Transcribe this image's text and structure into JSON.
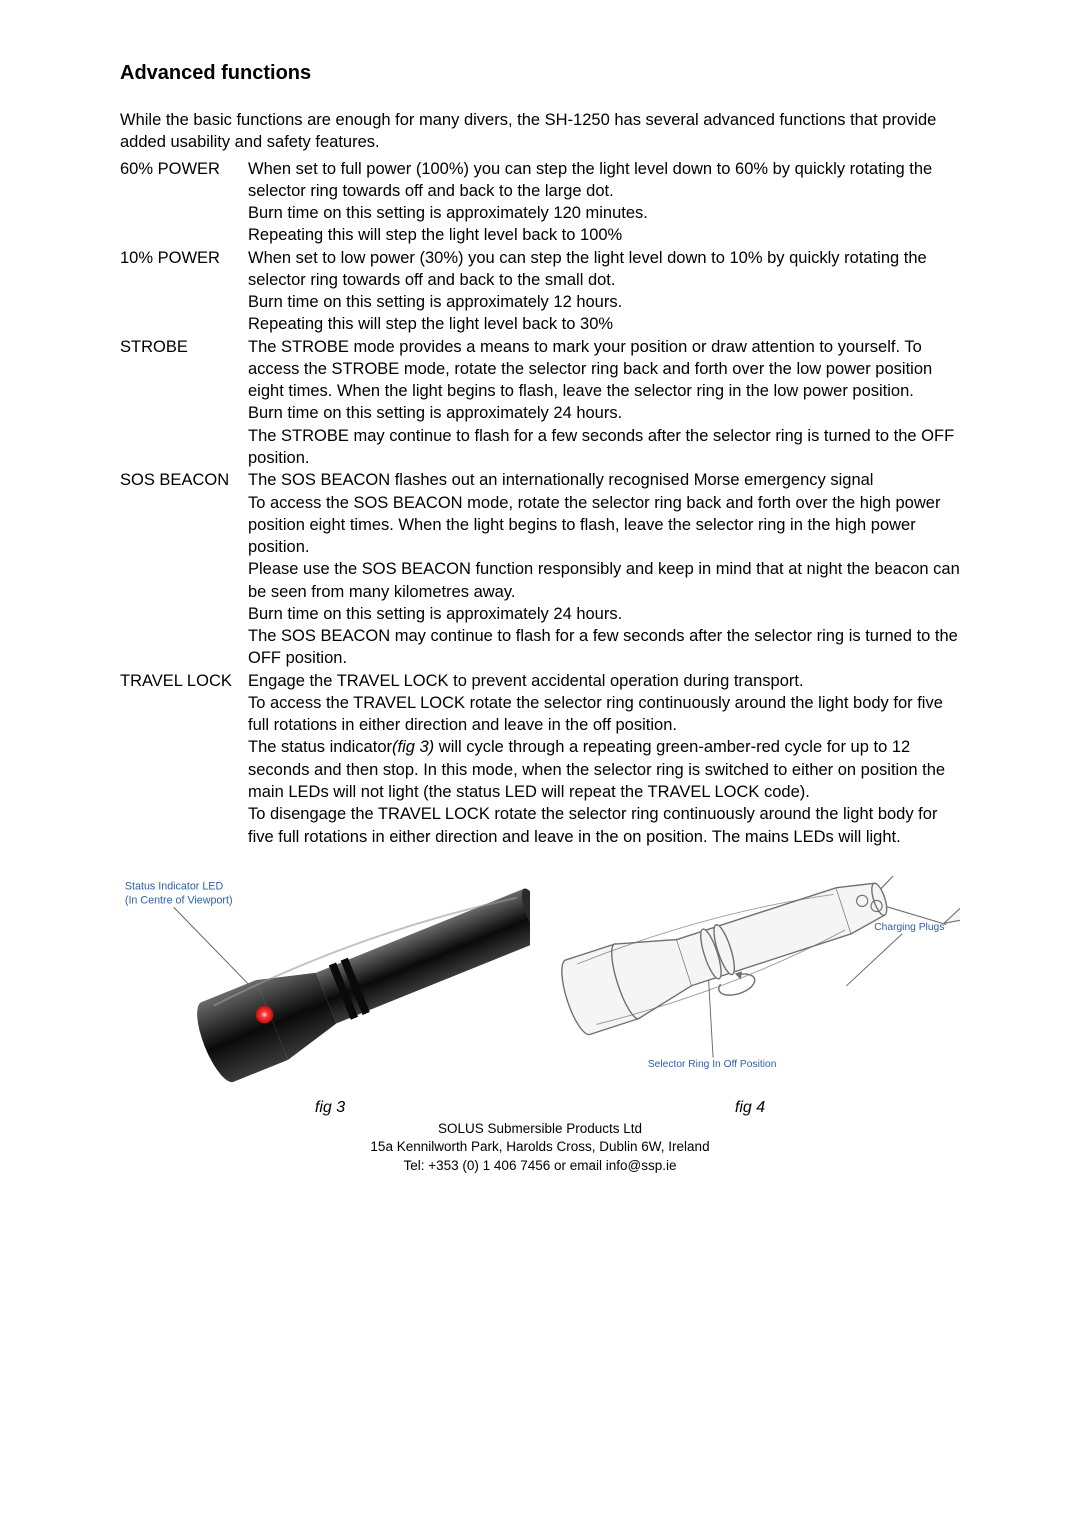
{
  "heading": "Advanced functions",
  "intro": "While the basic functions are enough for many divers, the SH-1250 has several advanced functions that provide added usability and safety features.",
  "functions": [
    {
      "label": "60% POWER",
      "paras": [
        "When set to full power (100%) you can step the light level down to 60% by quickly rotating the selector ring towards off and back to the large dot.",
        "Burn time on this setting is approximately 120 minutes.",
        "Repeating this will step the light level back to 100%"
      ]
    },
    {
      "label": "10% POWER",
      "paras": [
        "When set to low power (30%) you can step the light level down to 10% by quickly rotating the selector ring towards off and back to the small dot.",
        "Burn time on this setting is approximately 12 hours.",
        "Repeating this will step the light level back to 30%"
      ]
    },
    {
      "label": "STROBE",
      "paras": [
        "The STROBE mode provides a means to mark your position or draw attention to yourself. To access the STROBE mode, rotate the selector ring back and forth over the low power position eight times. When the light begins to flash, leave the selector ring in the low power position.",
        "Burn time on this setting is approximately 24 hours.",
        "The STROBE may continue to flash for a few seconds after the selector ring is turned to the OFF position."
      ]
    },
    {
      "label": "SOS BEACON",
      "paras": [
        "The SOS BEACON flashes out an internationally recognised Morse emergency signal",
        "To access the SOS BEACON mode, rotate the selector ring back and forth over the high power position eight times. When the light begins to flash, leave the selector ring in the high power position.",
        "Please use the SOS BEACON function responsibly and keep in mind that at night the beacon can be seen from many kilometres away.",
        "Burn time on this setting is approximately 24 hours.",
        "The SOS BEACON may continue to flash for a few seconds after the selector ring is turned to the OFF position."
      ]
    },
    {
      "label": "TRAVEL LOCK",
      "paras": [
        "Engage the TRAVEL LOCK to prevent accidental operation during transport.",
        "To access the TRAVEL LOCK rotate the selector ring continuously around the light body for five full rotations in either direction and leave in the off position.",
        "The status indicator<i>(fig 3)</i> will cycle through a repeating green-amber-red cycle for up to 12 seconds and then stop. In this mode, when the selector ring is switched to either on position the main LEDs will not light (the status LED will repeat the TRAVEL LOCK code).",
        "To disengage the TRAVEL LOCK rotate the selector ring continuously around the light body for five full rotations in either direction and leave in the on position. The mains LEDs will light."
      ]
    }
  ],
  "fig3": {
    "label1": "Status Indicator LED",
    "label2": "(In Centre of Viewport)",
    "caption": "fig 3",
    "colors": {
      "body_dark": "#1a1a1a",
      "body_mid": "#4a4a4a",
      "highlight": "#bfbfbf",
      "led": "#ff1a1a",
      "label": "#2e5fa3",
      "line": "#666666"
    }
  },
  "fig4": {
    "label_right": "Charging Plugs",
    "label_bottom": "Selector Ring In Off Position",
    "caption": "fig 4",
    "colors": {
      "outline": "#707070",
      "fill_light": "#e8e8e8",
      "fill_mid": "#c8c8c8",
      "label": "#2e5fa3",
      "line": "#666666"
    }
  },
  "footer": {
    "line1": "SOLUS Submersible Products Ltd",
    "line2": "15a Kennilworth Park, Harolds Cross, Dublin 6W, Ireland",
    "line3": "Tel: +353 (0) 1 406 7456 or email info@ssp.ie"
  }
}
